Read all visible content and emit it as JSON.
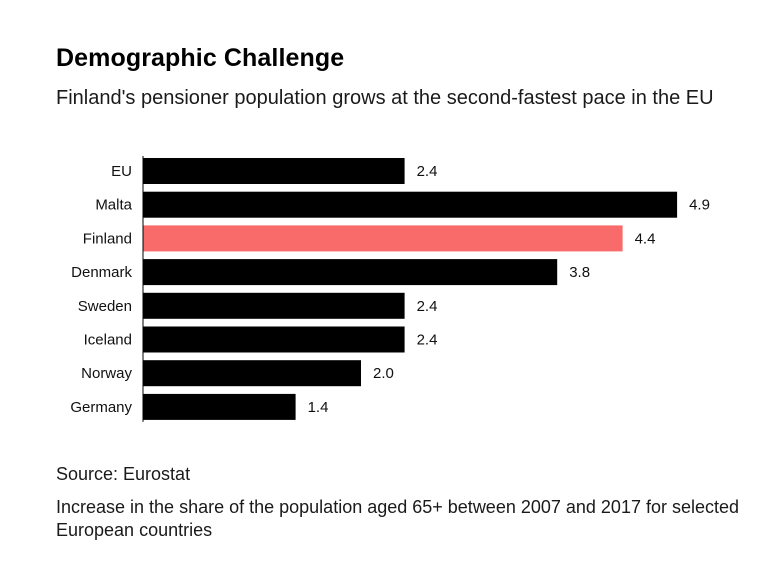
{
  "header": {
    "title": "Demographic Challenge",
    "subtitle": "Finland's pensioner population grows at the second-fastest pace in the EU"
  },
  "footer": {
    "source": "Source: Eurostat",
    "note": "Increase in the share of the population aged 65+ between 2007 and 2017 for selected European countries"
  },
  "colors": {
    "default_bar": "#000000",
    "highlight_bar": "#f96a6a"
  },
  "chart_data": {
    "type": "bar",
    "orientation": "horizontal",
    "title": "Demographic Challenge",
    "subtitle": "Finland's pensioner population grows at the second-fastest pace in the EU",
    "xlabel": "",
    "ylabel": "",
    "xlim": [
      0,
      5
    ],
    "grid": false,
    "categories": [
      "EU",
      "Malta",
      "Finland",
      "Denmark",
      "Sweden",
      "Iceland",
      "Norway",
      "Germany"
    ],
    "values": [
      2.4,
      4.9,
      4.4,
      3.8,
      2.4,
      2.4,
      2.0,
      1.4
    ],
    "value_labels": [
      "2.4",
      "4.9",
      "4.4",
      "3.8",
      "2.4",
      "2.4",
      "2.0",
      "1.4"
    ],
    "highlight": "Finland"
  }
}
